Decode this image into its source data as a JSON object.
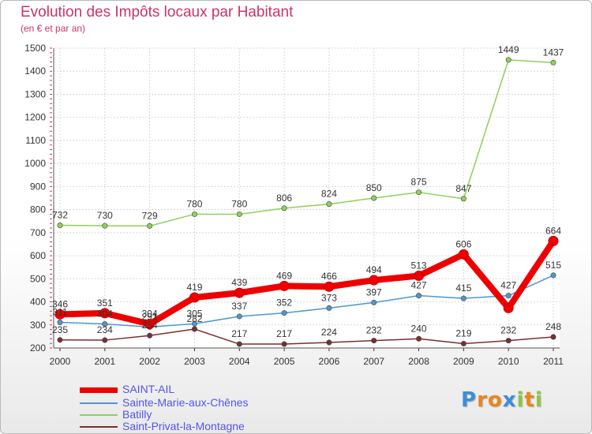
{
  "title": "Evolution des Impôts locaux par Habitant",
  "subtitle": "(en € et par an)",
  "logo": {
    "letters": [
      "P",
      "r",
      "o",
      "x",
      "i",
      "t",
      "i"
    ],
    "colors": [
      "#3b8fd6",
      "#e8861c",
      "#e8861c",
      "#3b8fd6",
      "#8cc63f",
      "#e8861c",
      "#8cc63f"
    ]
  },
  "chart_data": {
    "type": "line",
    "categories": [
      "2000",
      "2001",
      "2002",
      "2003",
      "2004",
      "2005",
      "2006",
      "2007",
      "2008",
      "2009",
      "2010",
      "2011"
    ],
    "ylim": [
      200,
      1500
    ],
    "yticks": [
      200,
      300,
      400,
      500,
      600,
      700,
      800,
      900,
      1000,
      1100,
      1200,
      1300,
      1400,
      1500
    ],
    "grid": true,
    "legend_position": "bottom-left",
    "series": [
      {
        "name": "SAINT-AIL",
        "color": "#ee0000",
        "values": [
          346,
          351,
          304,
          419,
          439,
          469,
          466,
          494,
          513,
          606,
          373,
          664
        ],
        "labels": [
          "346",
          "351",
          "304",
          "419",
          "439",
          "469",
          "466",
          "494",
          "513",
          "606",
          "",
          "664"
        ]
      },
      {
        "name": "Sainte-Marie-aux-Chênes",
        "color": "#4f97cf",
        "values": [
          311,
          304,
          291,
          305,
          337,
          352,
          373,
          397,
          427,
          415,
          427,
          515
        ],
        "labels": [
          "311",
          "304",
          "291",
          "305",
          "337",
          "352",
          "373",
          "397",
          "427",
          "415",
          "427",
          "515"
        ]
      },
      {
        "name": "Batilly",
        "color": "#8fd05a",
        "values": [
          732,
          730,
          729,
          780,
          780,
          806,
          824,
          850,
          875,
          847,
          1449,
          1437
        ],
        "labels": [
          "732",
          "730",
          "729",
          "780",
          "780",
          "806",
          "824",
          "850",
          "875",
          "847",
          "1449",
          "1437"
        ]
      },
      {
        "name": "Saint-Privat-la-Montagne",
        "color": "#7a2f2f",
        "values": [
          235,
          234,
          254,
          282,
          217,
          217,
          224,
          232,
          240,
          219,
          232,
          248
        ],
        "labels": [
          "235",
          "234",
          "254",
          "282",
          "217",
          "217",
          "224",
          "232",
          "240",
          "219",
          "232",
          "248"
        ]
      }
    ]
  }
}
